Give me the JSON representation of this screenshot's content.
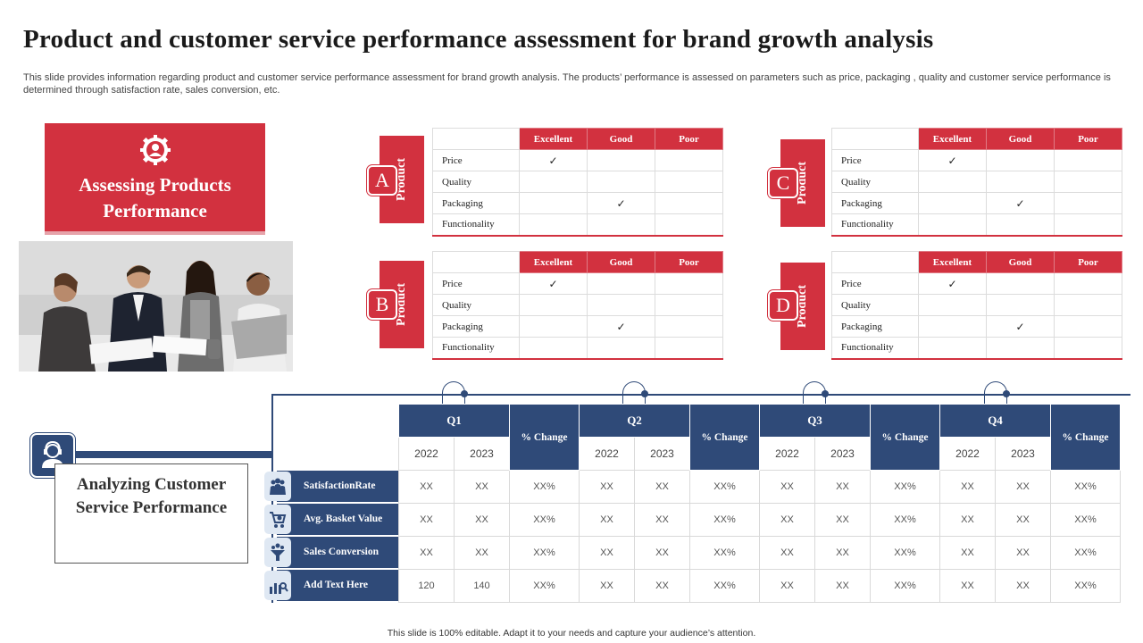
{
  "title": "Product and customer service performance assessment for brand growth analysis",
  "description": "This slide provides information regarding product and customer service performance assessment for brand growth analysis. The products’ performance is assessed  on parameters such as price, packaging , quality and customer service performance is determined through satisfaction rate, sales conversion, etc.",
  "assess_card": {
    "label": "Assessing Products Performance",
    "icon": "gear-person-icon"
  },
  "photo": {
    "description_icon": "team-meeting-photo"
  },
  "product_tables": [
    {
      "badge": "A",
      "tab_label": "Product",
      "headers": [
        "Excellent",
        "Good",
        "Poor"
      ],
      "rows": [
        {
          "label": "Price",
          "marks": [
            "✓",
            "",
            ""
          ]
        },
        {
          "label": "Quality",
          "marks": [
            "",
            "",
            ""
          ]
        },
        {
          "label": "Packaging",
          "marks": [
            "",
            "✓",
            ""
          ]
        },
        {
          "label": "Functionality",
          "marks": [
            "",
            "",
            ""
          ]
        }
      ]
    },
    {
      "badge": "B",
      "tab_label": "Product",
      "headers": [
        "Excellent",
        "Good",
        "Poor"
      ],
      "rows": [
        {
          "label": "Price",
          "marks": [
            "✓",
            "",
            ""
          ]
        },
        {
          "label": "Quality",
          "marks": [
            "",
            "",
            ""
          ]
        },
        {
          "label": "Packaging",
          "marks": [
            "",
            "✓",
            ""
          ]
        },
        {
          "label": "Functionality",
          "marks": [
            "",
            "",
            ""
          ]
        }
      ]
    },
    {
      "badge": "C",
      "tab_label": "Product",
      "headers": [
        "Excellent",
        "Good",
        "Poor"
      ],
      "rows": [
        {
          "label": "Price",
          "marks": [
            "✓",
            "",
            ""
          ]
        },
        {
          "label": "Quality",
          "marks": [
            "",
            "",
            ""
          ]
        },
        {
          "label": "Packaging",
          "marks": [
            "",
            "✓",
            ""
          ]
        },
        {
          "label": "Functionality",
          "marks": [
            "",
            "",
            ""
          ]
        }
      ]
    },
    {
      "badge": "D",
      "tab_label": "Product",
      "headers": [
        "Excellent",
        "Good",
        "Poor"
      ],
      "rows": [
        {
          "label": "Price",
          "marks": [
            "✓",
            "",
            ""
          ]
        },
        {
          "label": "Quality",
          "marks": [
            "",
            "",
            ""
          ]
        },
        {
          "label": "Packaging",
          "marks": [
            "",
            "✓",
            ""
          ]
        },
        {
          "label": "Functionality",
          "marks": [
            "",
            "",
            ""
          ]
        }
      ]
    }
  ],
  "service": {
    "label": "Analyzing Customer Service Performance",
    "quarters": [
      "Q1",
      "Q2",
      "Q3",
      "Q4"
    ],
    "change_label": "% Change",
    "years": [
      "2022",
      "2023"
    ],
    "metrics": [
      {
        "label": "SatisfactionRate",
        "icon": "people-group-icon",
        "values": [
          "XX",
          "XX",
          "XX%",
          "XX",
          "XX",
          "XX%",
          "XX",
          "XX",
          "XX%",
          "XX",
          "XX",
          "XX%"
        ]
      },
      {
        "label": "Avg. Basket Value",
        "icon": "shopping-cart-icon",
        "values": [
          "XX",
          "XX",
          "XX%",
          "XX",
          "XX",
          "XX%",
          "XX",
          "XX",
          "XX%",
          "XX",
          "XX",
          "XX%"
        ]
      },
      {
        "label": "Sales Conversion",
        "icon": "funnel-icon",
        "values": [
          "XX",
          "XX",
          "XX%",
          "XX",
          "XX",
          "XX%",
          "XX",
          "XX",
          "XX%",
          "XX",
          "XX",
          "XX%"
        ]
      },
      {
        "label": "Add Text Here",
        "icon": "bar-chart-icon",
        "values": [
          "120",
          "140",
          "XX%",
          "XX",
          "XX",
          "XX%",
          "XX",
          "XX",
          "XX%",
          "XX",
          "XX",
          "XX%"
        ]
      }
    ]
  },
  "footer": "This slide is 100% editable. Adapt it to your needs and capture your audience’s attention.",
  "colors": {
    "red": "#d2313f",
    "navy": "#2f4a78"
  }
}
